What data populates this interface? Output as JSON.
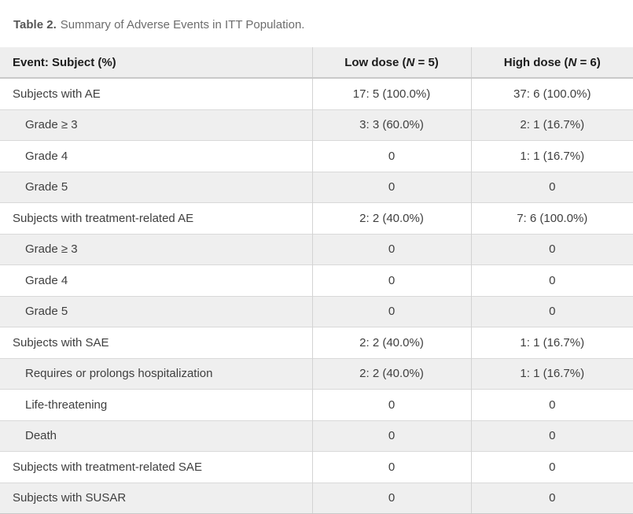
{
  "caption": {
    "label": "Table 2.",
    "text": "Summary of Adverse Events in ITT Population."
  },
  "colors": {
    "header_bg": "#eeeeee",
    "stripe_bg": "#efefef",
    "border_strong": "#c9c9c9",
    "border_light": "#d9d9d9",
    "header_text": "#1c1c1c",
    "body_text": "#3f3f3f",
    "caption_text": "#6d6d6d"
  },
  "table": {
    "header": {
      "event_col": "Event: Subject (%)",
      "low_col": {
        "pre": "Low dose (",
        "n": "N",
        "post": " = 5)"
      },
      "high_col": {
        "pre": "High dose (",
        "n": "N",
        "post": " = 6)"
      }
    },
    "rows": [
      {
        "label": "Subjects with AE",
        "indent": false,
        "low": "17: 5 (100.0%)",
        "high": "37: 6 (100.0%)"
      },
      {
        "label": "Grade ≥ 3",
        "indent": true,
        "low": "3: 3 (60.0%)",
        "high": "2: 1 (16.7%)"
      },
      {
        "label": "Grade 4",
        "indent": true,
        "low": "0",
        "high": "1: 1 (16.7%)"
      },
      {
        "label": "Grade 5",
        "indent": true,
        "low": "0",
        "high": "0"
      },
      {
        "label": "Subjects with treatment-related AE",
        "indent": false,
        "low": "2: 2 (40.0%)",
        "high": "7: 6 (100.0%)"
      },
      {
        "label": "Grade ≥ 3",
        "indent": true,
        "low": "0",
        "high": "0"
      },
      {
        "label": "Grade 4",
        "indent": true,
        "low": "0",
        "high": "0"
      },
      {
        "label": "Grade 5",
        "indent": true,
        "low": "0",
        "high": "0"
      },
      {
        "label": "Subjects with SAE",
        "indent": false,
        "low": "2: 2 (40.0%)",
        "high": "1: 1 (16.7%)"
      },
      {
        "label": "Requires or prolongs hospitalization",
        "indent": true,
        "low": "2: 2 (40.0%)",
        "high": "1: 1 (16.7%)"
      },
      {
        "label": "Life-threatening",
        "indent": true,
        "low": "0",
        "high": "0"
      },
      {
        "label": "Death",
        "indent": true,
        "low": "0",
        "high": "0"
      },
      {
        "label": "Subjects with treatment-related SAE",
        "indent": false,
        "low": "0",
        "high": "0"
      },
      {
        "label": "Subjects with SUSAR",
        "indent": false,
        "low": "0",
        "high": "0"
      }
    ]
  }
}
